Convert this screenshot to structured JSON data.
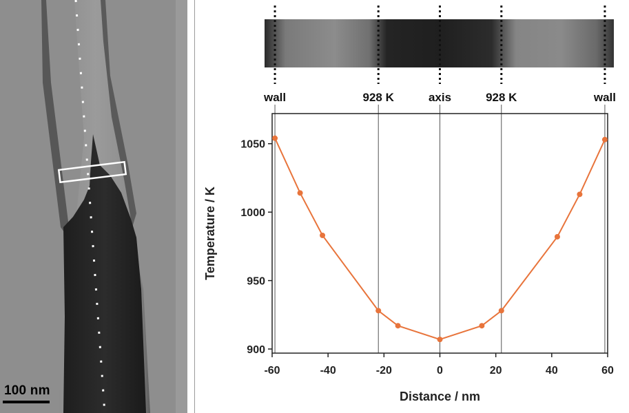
{
  "micrograph": {
    "scale_bar_label": "100 nm"
  },
  "chart_data": {
    "type": "line",
    "xlabel": "Distance / nm",
    "ylabel": "Temperature / K",
    "xlim": [
      -60,
      60
    ],
    "ylim": [
      897,
      1072
    ],
    "xticks": [
      -60,
      -40,
      -20,
      0,
      20,
      40,
      60
    ],
    "yticks": [
      900,
      950,
      1000,
      1050
    ],
    "series": [
      {
        "color": "#e8743b",
        "x": [
          -59,
          -50,
          -42,
          -22,
          -15,
          0,
          15,
          22,
          42,
          50,
          59
        ],
        "y": [
          1054,
          1014,
          983,
          928,
          917,
          907,
          917,
          928,
          982,
          1013,
          1053
        ]
      }
    ],
    "reference_lines": [
      {
        "x": -59,
        "label": "wall"
      },
      {
        "x": -22,
        "label": "928 K"
      },
      {
        "x": 0,
        "label": "axis"
      },
      {
        "x": 22,
        "label": "928 K"
      },
      {
        "x": 59,
        "label": "wall"
      }
    ],
    "grid": false
  }
}
